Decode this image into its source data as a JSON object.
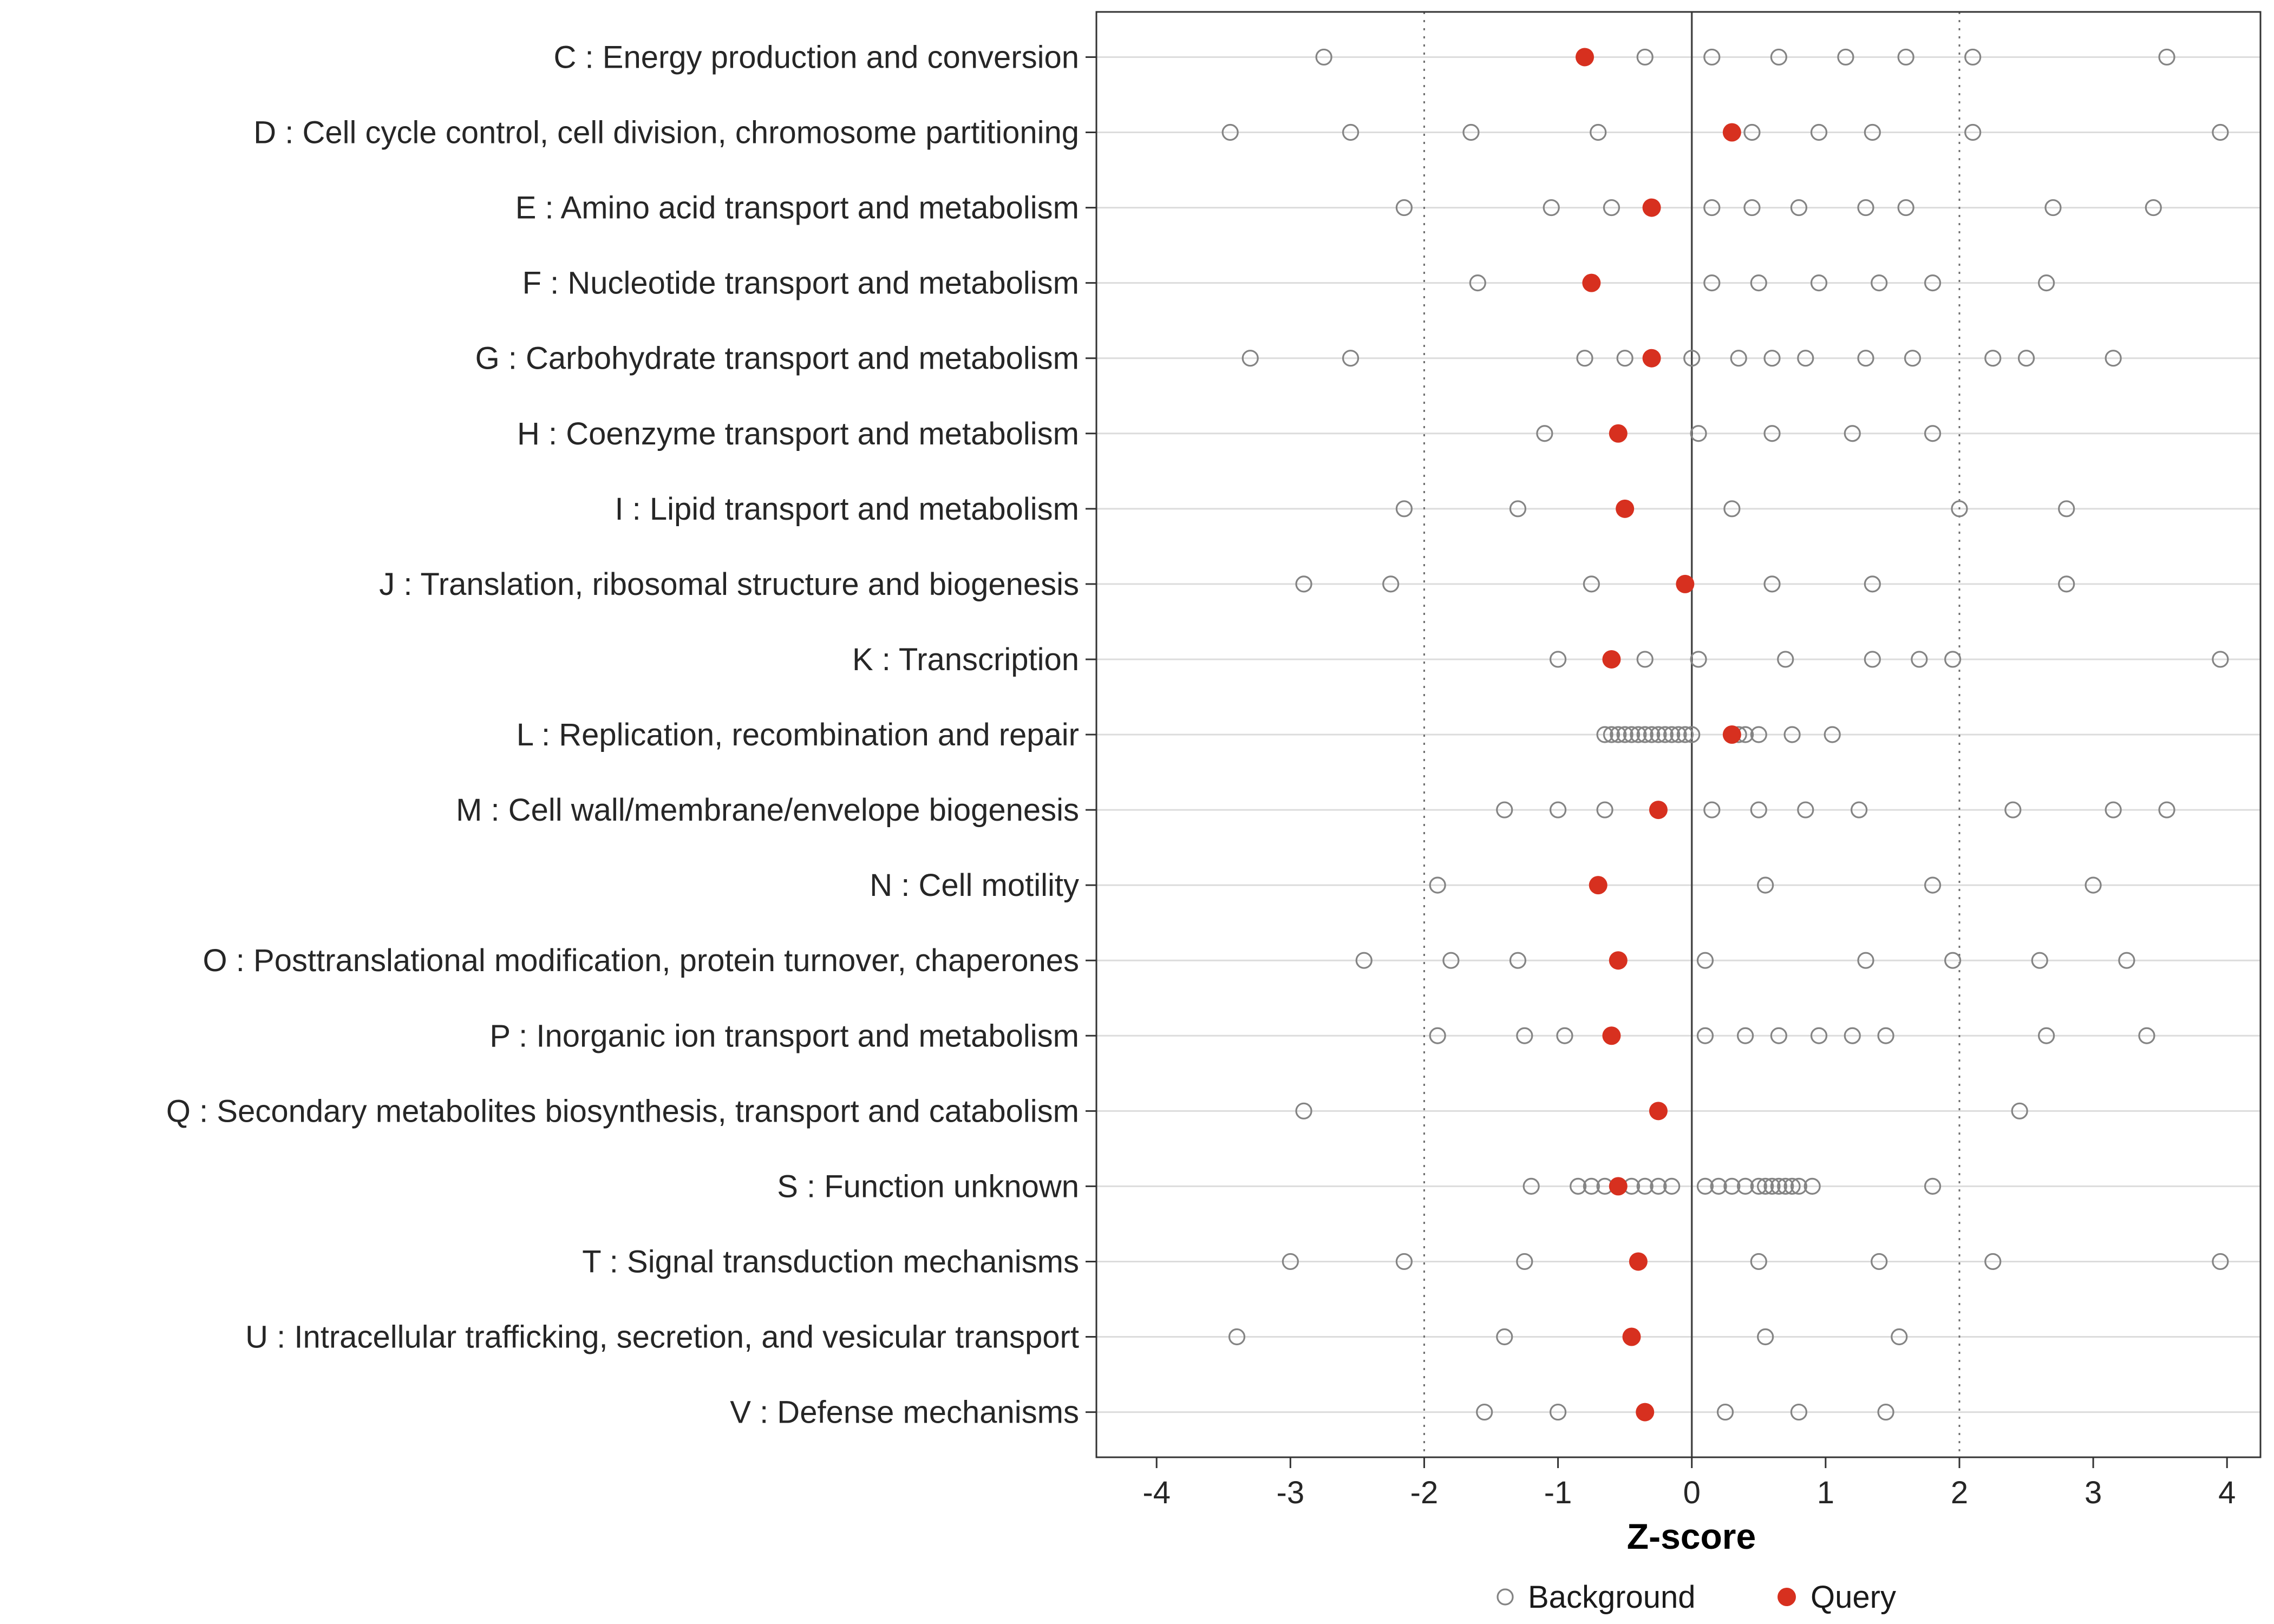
{
  "chart_data": {
    "type": "scatter",
    "title": "",
    "xlabel": "Z-score",
    "x_ticks": [
      "-4",
      "-3",
      "-2",
      "-1",
      "0",
      "1",
      "2",
      "3",
      "4"
    ],
    "x_tick_values": [
      -4,
      -3,
      -2,
      -1,
      0,
      1,
      2,
      3,
      4
    ],
    "x_domain": [
      -4.45,
      4.25
    ],
    "vline_solid": 0,
    "vlines_dotted": [
      -2,
      2
    ],
    "grid": "horizontal-major",
    "legend_position": "bottom",
    "legend": [
      {
        "label": "Background",
        "marker": "open-circle"
      },
      {
        "label": "Query",
        "marker": "filled-circle"
      }
    ],
    "colors": {
      "query": "#d7301f",
      "background_stroke": "#848484",
      "grid_line": "#dcdcdc",
      "axis_text": "#262626",
      "panel_border": "#333333",
      "zero_line": "#4a4a4a",
      "dotted_line": "#6e6e6e",
      "panel_background": "#ffffff"
    },
    "rows": [
      {
        "label": "C : Energy production and conversion",
        "query": -0.8,
        "background": [
          -2.75,
          -0.35,
          0.15,
          0.65,
          1.15,
          1.6,
          2.1,
          3.55
        ]
      },
      {
        "label": "D : Cell cycle control, cell division, chromosome partitioning",
        "query": 0.3,
        "background": [
          -3.45,
          -2.55,
          -1.65,
          -0.7,
          0.45,
          0.95,
          1.35,
          2.1,
          3.95
        ]
      },
      {
        "label": "E : Amino acid transport and metabolism",
        "query": -0.3,
        "background": [
          -2.15,
          -1.05,
          -0.6,
          0.15,
          0.45,
          0.8,
          1.3,
          1.6,
          2.7,
          3.45
        ]
      },
      {
        "label": "F : Nucleotide transport and metabolism",
        "query": -0.75,
        "background": [
          -1.6,
          0.15,
          0.5,
          0.95,
          1.4,
          1.8,
          2.65
        ]
      },
      {
        "label": "G : Carbohydrate transport and metabolism",
        "query": -0.3,
        "background": [
          -3.3,
          -2.55,
          -0.8,
          -0.5,
          0.0,
          0.35,
          0.6,
          0.85,
          1.3,
          1.65,
          2.25,
          2.5,
          3.15
        ]
      },
      {
        "label": "H : Coenzyme transport and metabolism",
        "query": -0.55,
        "background": [
          -1.1,
          0.05,
          0.6,
          1.2,
          1.8
        ]
      },
      {
        "label": "I : Lipid transport and metabolism",
        "query": -0.5,
        "background": [
          -2.15,
          -1.3,
          0.3,
          2.0,
          2.8
        ]
      },
      {
        "label": "J : Translation, ribosomal structure and biogenesis",
        "query": -0.05,
        "background": [
          -2.9,
          -2.25,
          -0.75,
          0.6,
          1.35,
          2.8
        ]
      },
      {
        "label": "K : Transcription",
        "query": -0.6,
        "background": [
          -1.0,
          -0.35,
          0.05,
          0.7,
          1.35,
          1.7,
          1.95,
          3.95
        ]
      },
      {
        "label": "L : Replication, recombination and repair",
        "query": 0.3,
        "background": [
          -0.65,
          -0.6,
          -0.55,
          -0.5,
          -0.45,
          -0.4,
          -0.35,
          -0.3,
          -0.25,
          -0.2,
          -0.15,
          -0.1,
          -0.05,
          0.0,
          0.35,
          0.4,
          0.5,
          0.75,
          1.05
        ]
      },
      {
        "label": "M : Cell wall/membrane/envelope biogenesis",
        "query": -0.25,
        "background": [
          -1.4,
          -1.0,
          -0.65,
          0.15,
          0.5,
          0.85,
          1.25,
          2.4,
          3.15,
          3.55
        ]
      },
      {
        "label": "N : Cell motility",
        "query": -0.7,
        "background": [
          -1.9,
          0.55,
          1.8,
          3.0
        ]
      },
      {
        "label": "O : Posttranslational modification, protein turnover, chaperones",
        "query": -0.55,
        "background": [
          -2.45,
          -1.8,
          -1.3,
          0.1,
          1.3,
          1.95,
          2.6,
          3.25
        ]
      },
      {
        "label": "P : Inorganic ion transport and metabolism",
        "query": -0.6,
        "background": [
          -1.9,
          -1.25,
          -0.95,
          0.1,
          0.4,
          0.65,
          0.95,
          1.2,
          1.45,
          2.65,
          3.4
        ]
      },
      {
        "label": "Q : Secondary metabolites biosynthesis, transport and catabolism",
        "query": -0.25,
        "background": [
          -2.9,
          2.45
        ]
      },
      {
        "label": "S : Function unknown",
        "query": -0.55,
        "background": [
          -1.2,
          -0.85,
          -0.75,
          -0.65,
          -0.45,
          -0.35,
          -0.25,
          -0.15,
          0.1,
          0.2,
          0.3,
          0.4,
          0.5,
          0.55,
          0.6,
          0.65,
          0.7,
          0.75,
          0.8,
          0.9,
          1.8
        ]
      },
      {
        "label": "T : Signal transduction mechanisms",
        "query": -0.4,
        "background": [
          -3.0,
          -2.15,
          -1.25,
          0.5,
          1.4,
          2.25,
          3.95
        ]
      },
      {
        "label": "U : Intracellular trafficking, secretion, and vesicular transport",
        "query": -0.45,
        "background": [
          -3.4,
          -1.4,
          0.55,
          1.55
        ]
      },
      {
        "label": "V : Defense mechanisms",
        "query": -0.35,
        "background": [
          -1.55,
          -1.0,
          0.25,
          0.8,
          1.45
        ]
      }
    ]
  }
}
